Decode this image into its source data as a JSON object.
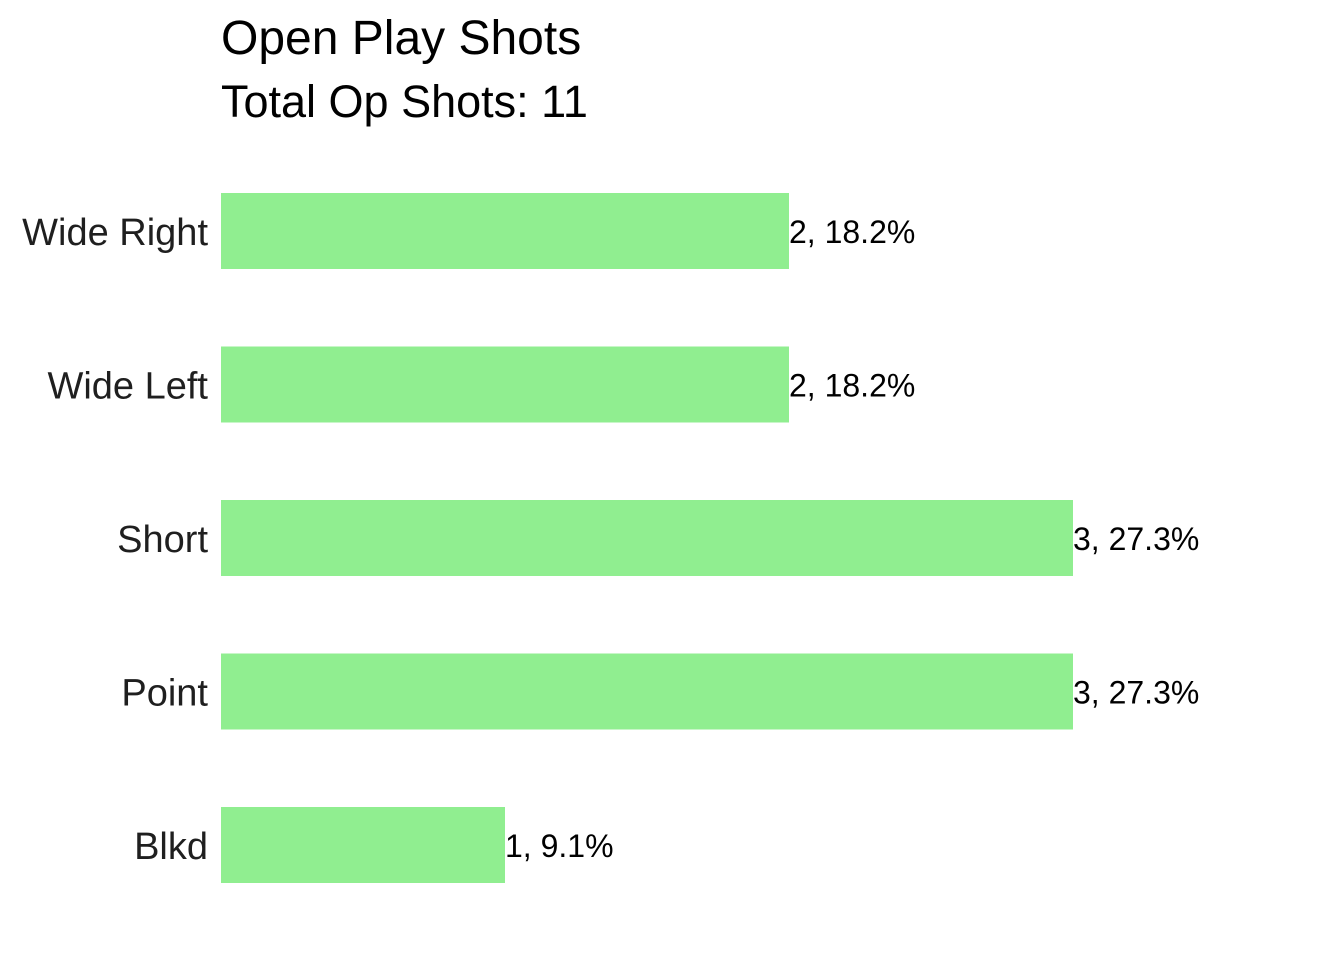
{
  "chart_data": {
    "type": "bar",
    "orientation": "horizontal",
    "title": "Open Play Shots",
    "subtitle": "Total Op Shots: 11",
    "categories": [
      "Wide Right",
      "Wide Left",
      "Short",
      "Point",
      "Blkd"
    ],
    "values": [
      2,
      2,
      3,
      3,
      1
    ],
    "data_labels": [
      "2, 18.2%",
      "2, 18.2%",
      "3, 27.3%",
      "3, 27.3%",
      "1, 9.1%"
    ],
    "xlim": [
      0,
      3
    ],
    "grid": false,
    "legend": "none",
    "bar_color": "#90EE90"
  }
}
